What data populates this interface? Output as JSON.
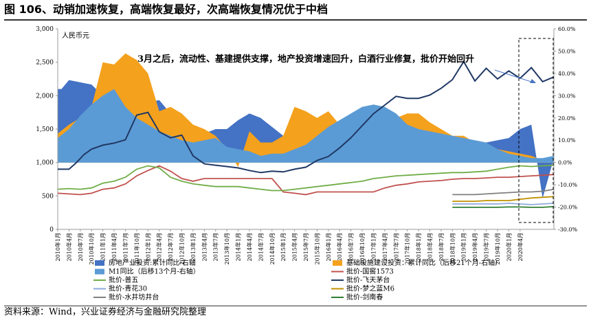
{
  "figure": {
    "title": "图 106、动销加速恢复，高端恢复最好，次高端恢复情况优于中档",
    "source": "资料来源：Wind，兴业证券经济与金融研究院整理"
  },
  "chart_data": {
    "type": "line",
    "unit_label": "人民币元",
    "annotation": "3月之后，流动性、基建提供支撑，地产投资增速回升，白酒行业修复，批价开始回升",
    "left_axis": {
      "min": 0,
      "max": 3000,
      "ticks": [
        "0",
        "500",
        "1,000",
        "1,500",
        "2,000",
        "2,500",
        "3,000"
      ]
    },
    "right_axis": {
      "min": -30,
      "max": 60,
      "ticks": [
        "-30.0%",
        "-20.0%",
        "-10.0%",
        "0.0%",
        "10.0%",
        "20.0%",
        "30.0%",
        "40.0%",
        "50.0%",
        "60.0%"
      ]
    },
    "x_labels": [
      "2010年1月",
      "2010年4月",
      "2010年7月",
      "2010年10月",
      "2011年1月",
      "2011年4月",
      "2011年7月",
      "2011年10月",
      "2012年1月",
      "2012年4月",
      "2012年7月",
      "2012年10月",
      "2013年1月",
      "2013年4月",
      "2013年7月",
      "2013年10月",
      "2014年1月",
      "2014年4月",
      "2014年7月",
      "2014年10月",
      "2015年1月",
      "2015年4月",
      "2015年7月",
      "2015年10月",
      "2016年1月",
      "2016年4月",
      "2016年7月",
      "2016年10月",
      "2017年1月",
      "2017年4月",
      "2017年7月",
      "2017年10月",
      "2018年1月",
      "2018年4月",
      "2018年7月",
      "2018年10月",
      "2019年1月",
      "2019年4月",
      "2019年7月",
      "2019年10月",
      "2020年1月",
      "2020年4月"
    ],
    "series": [
      {
        "name": "房地产业投资:累计同比-右轴",
        "type": "area",
        "axis": "right",
        "color": "#4472C4",
        "t": [
          0,
          1,
          3,
          6,
          9,
          12,
          15,
          18,
          21,
          24,
          27,
          30,
          33,
          36,
          39,
          42,
          45,
          48,
          51,
          54,
          57,
          60,
          63,
          66,
          69,
          72,
          75,
          78,
          81,
          84,
          87,
          90,
          93,
          96,
          99,
          102,
          105,
          108,
          111,
          114,
          117,
          120,
          123,
          126,
          129,
          132
        ],
        "values": [
          33,
          33,
          37,
          36,
          35,
          30,
          33,
          35,
          34,
          27,
          28,
          22,
          20,
          16,
          13,
          15,
          15,
          19,
          22,
          20,
          16,
          12,
          11,
          10,
          7,
          5,
          3,
          1,
          1.5,
          2,
          3,
          6,
          7.5,
          8.5,
          9,
          9,
          10,
          10,
          9,
          9,
          10,
          11,
          15,
          17,
          -16,
          2
        ]
      },
      {
        "name": "基础设施建设投资：累计同比（后移21个月-右轴）",
        "type": "area",
        "axis": "right",
        "color": "#F4A11D",
        "t": [
          0,
          3,
          6,
          9,
          12,
          15,
          18,
          21,
          24,
          27,
          30,
          33,
          36,
          39,
          42,
          45,
          48,
          51,
          54,
          57,
          60,
          63,
          66,
          69,
          72,
          75,
          78,
          81,
          84,
          87,
          90,
          93,
          96,
          99,
          102,
          105,
          108,
          111,
          114,
          117,
          120,
          123,
          126,
          129,
          132
        ],
        "values": [
          13,
          17,
          20,
          25,
          45,
          44,
          49,
          46,
          40,
          23,
          25,
          22,
          17,
          15,
          12,
          6,
          -2,
          14,
          9,
          9,
          12,
          25,
          23,
          20,
          23,
          17,
          20,
          15,
          18,
          18,
          20,
          22,
          22,
          18,
          15,
          12,
          12,
          9,
          8,
          6,
          5,
          4,
          3,
          1,
          0
        ]
      },
      {
        "name": "M1同比（后移13个月-右轴）",
        "type": "area",
        "axis": "right",
        "color": "#5B9BD5",
        "t": [
          0,
          3,
          6,
          9,
          12,
          15,
          18,
          21,
          24,
          27,
          30,
          33,
          36,
          39,
          42,
          45,
          48,
          51,
          54,
          57,
          60,
          63,
          66,
          69,
          72,
          75,
          78,
          81,
          84,
          87,
          90,
          93,
          96,
          99,
          102,
          105,
          108,
          111,
          114,
          117,
          120,
          123,
          126,
          129,
          132
        ],
        "values": [
          11,
          15,
          21,
          26,
          30,
          33,
          25,
          20,
          17,
          14,
          12,
          10,
          9,
          10,
          11,
          7,
          6,
          5,
          3,
          4,
          4,
          6,
          8,
          12,
          16,
          19,
          22,
          25,
          26,
          25,
          22,
          17,
          15,
          14,
          13,
          12,
          11,
          10,
          9,
          6,
          4,
          3,
          2,
          2,
          3
        ]
      },
      {
        "name": "批价-飞天茅台",
        "type": "line",
        "axis": "left",
        "color": "#1F3864",
        "t": [
          0,
          3,
          5,
          7,
          9,
          12,
          15,
          18,
          21,
          24,
          27,
          30,
          33,
          36,
          39,
          42,
          45,
          48,
          51,
          54,
          57,
          60,
          63,
          66,
          69,
          72,
          75,
          78,
          81,
          84,
          87,
          90,
          93,
          96,
          99,
          102,
          105,
          108,
          111,
          114,
          117,
          120,
          123,
          126,
          129,
          132
        ],
        "values": [
          900,
          900,
          1000,
          1120,
          1200,
          1260,
          1290,
          1340,
          1710,
          1750,
          1460,
          1370,
          1410,
          1100,
          980,
          960,
          940,
          920,
          880,
          850,
          870,
          860,
          900,
          930,
          1030,
          1090,
          1220,
          1370,
          1550,
          1730,
          1860,
          1990,
          1960,
          1960,
          2010,
          2110,
          2240,
          2510,
          2220,
          2410,
          2250,
          2370,
          2260,
          2420,
          2210,
          2280
        ]
      },
      {
        "name": "批价-国窖1573",
        "type": "line",
        "axis": "left",
        "color": "#C0504D",
        "t": [
          0,
          3,
          6,
          9,
          12,
          15,
          18,
          21,
          24,
          27,
          30,
          33,
          36,
          39,
          42,
          45,
          48,
          51,
          54,
          57,
          60,
          63,
          66,
          69,
          72,
          75,
          78,
          81,
          84,
          87,
          90,
          93,
          96,
          99,
          102,
          105,
          108,
          111,
          114,
          117,
          120,
          123,
          126,
          129,
          132
        ],
        "values": [
          540,
          530,
          520,
          540,
          600,
          620,
          680,
          800,
          880,
          950,
          870,
          760,
          720,
          760,
          760,
          760,
          760,
          760,
          760,
          760,
          560,
          540,
          520,
          560,
          560,
          560,
          560,
          560,
          560,
          620,
          660,
          680,
          710,
          720,
          730,
          750,
          760,
          760,
          770,
          780,
          780,
          790,
          800,
          810,
          820
        ]
      },
      {
        "name": "批价-普五",
        "type": "line",
        "axis": "left",
        "color": "#70AD47",
        "t": [
          0,
          3,
          6,
          9,
          12,
          15,
          18,
          21,
          24,
          27,
          30,
          33,
          36,
          39,
          42,
          45,
          48,
          51,
          54,
          57,
          60,
          63,
          66,
          69,
          72,
          75,
          78,
          81,
          84,
          87,
          90,
          93,
          96,
          99,
          102,
          105,
          108,
          111,
          114,
          117,
          120,
          123,
          126,
          129,
          132
        ],
        "values": [
          600,
          610,
          600,
          620,
          690,
          720,
          780,
          900,
          950,
          920,
          780,
          720,
          680,
          660,
          640,
          640,
          640,
          620,
          600,
          580,
          580,
          600,
          620,
          640,
          660,
          680,
          700,
          720,
          760,
          780,
          800,
          810,
          820,
          830,
          840,
          850,
          850,
          860,
          870,
          900,
          930,
          950,
          940,
          950,
          960
        ]
      },
      {
        "name": "批价-梦之蓝M6",
        "type": "line",
        "axis": "left",
        "color": "#BF9000",
        "t": [
          105,
          108,
          111,
          114,
          117,
          120,
          123,
          126,
          129,
          132
        ],
        "values": [
          420,
          420,
          420,
          430,
          430,
          430,
          450,
          470,
          480,
          490
        ]
      },
      {
        "name": "批价-水井坊井台",
        "type": "line",
        "axis": "left",
        "color": "#7F7F7F",
        "t": [
          105,
          108,
          111,
          114,
          117,
          120,
          123,
          126,
          129,
          132
        ],
        "values": [
          520,
          520,
          520,
          530,
          540,
          550,
          560,
          560,
          570,
          600
        ]
      },
      {
        "name": "批价-青花30",
        "type": "line",
        "axis": "left",
        "color": "#8EA9DB",
        "t": [
          105,
          108,
          111,
          114,
          117,
          120,
          123,
          126,
          129,
          132
        ],
        "values": [
          380,
          380,
          380,
          380,
          380,
          390,
          380,
          370,
          380,
          390
        ]
      },
      {
        "name": "批价-剑南春",
        "type": "line",
        "axis": "left",
        "color": "#2E7D32",
        "t": [
          105,
          108,
          111,
          114,
          117,
          120,
          123,
          126,
          129,
          132
        ],
        "values": [
          330,
          330,
          330,
          330,
          330,
          335,
          335,
          330,
          330,
          340
        ]
      }
    ],
    "legend": [
      {
        "label": "房地产业投资:累计同比-右轴",
        "kind": "patch",
        "color": "#4472C4"
      },
      {
        "label": "基础设施建设投资：累计同比（后移21个月-右轴）",
        "kind": "patch",
        "color": "#F4A11D"
      },
      {
        "label": "M1同比（后移13个月-右轴）",
        "kind": "patch",
        "color": "#5B9BD5"
      },
      {
        "label": "批价-国窖1573",
        "kind": "line",
        "color": "#C0504D"
      },
      {
        "label": "批价-普五",
        "kind": "line",
        "color": "#70AD47"
      },
      {
        "label": "批价-飞天茅台",
        "kind": "line",
        "color": "#1F3864"
      },
      {
        "label": "批价-青花30",
        "kind": "line",
        "color": "#8EA9DB"
      },
      {
        "label": "批价-梦之蓝M6",
        "kind": "line",
        "color": "#BF9000"
      },
      {
        "label": "批价-水井坊井台",
        "kind": "line",
        "color": "#7F7F7F"
      },
      {
        "label": "批价-剑南春",
        "kind": "line",
        "color": "#2E7D32"
      }
    ]
  }
}
